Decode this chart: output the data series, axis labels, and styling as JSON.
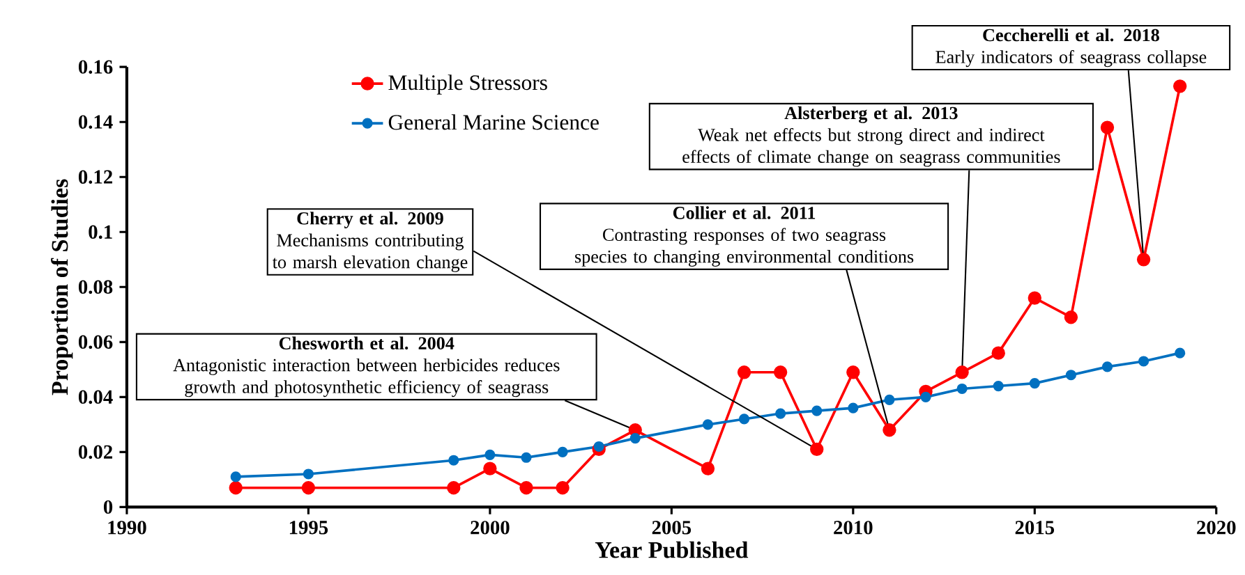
{
  "chart_data": {
    "type": "line",
    "xlabel": "Year Published",
    "ylabel": "Proportion of Studies",
    "xlim": [
      1990,
      2020
    ],
    "ylim": [
      0,
      0.16
    ],
    "xticks": [
      1990,
      1995,
      2000,
      2005,
      2010,
      2015,
      2020
    ],
    "yticks": [
      0,
      0.02,
      0.04,
      0.06,
      0.08,
      0.1,
      0.12,
      0.14,
      0.16
    ],
    "x": [
      1993,
      1995,
      1999,
      2000,
      2001,
      2002,
      2003,
      2004,
      2006,
      2007,
      2008,
      2009,
      2010,
      2011,
      2012,
      2013,
      2014,
      2015,
      2016,
      2017,
      2018,
      2019
    ],
    "series": [
      {
        "name": "Multiple Stressors",
        "color": "#ff0000",
        "values": [
          0.007,
          0.007,
          0.007,
          0.014,
          0.007,
          0.007,
          0.021,
          0.028,
          0.014,
          0.049,
          0.049,
          0.021,
          0.049,
          0.028,
          0.042,
          0.049,
          0.056,
          0.076,
          0.069,
          0.138,
          0.09,
          0.153
        ]
      },
      {
        "name": "General Marine Science",
        "color": "#0070c0",
        "values": [
          0.011,
          0.012,
          0.017,
          0.019,
          0.018,
          0.02,
          0.022,
          0.025,
          0.03,
          0.032,
          0.034,
          0.035,
          0.036,
          0.039,
          0.04,
          0.043,
          0.044,
          0.045,
          0.048,
          0.051,
          0.053,
          0.056
        ]
      }
    ],
    "annotations": [
      "Chesworth et al. 2004",
      {
        "text": "Antagonistic interaction between herbicides reduces growth and photosynthetic efficiency of seagrass",
        "x": 2004,
        "y": 0.028
      },
      "Cherry et al. 2009",
      {
        "text": "Mechanisms contributing to marsh elevation change",
        "x": 2009,
        "y": 0.021
      },
      "Collier et al. 2011",
      {
        "text": "Contrasting responses of two seagrass species to changing environmental conditions",
        "x": 2011,
        "y": 0.028
      },
      "Alsterberg et al. 2013",
      {
        "text": "Weak net effects but strong direct and indirect effects of climate change on seagrass communities",
        "x": 2013,
        "y": 0.049
      },
      "Ceccherelli et al. 2018",
      {
        "text": "Early indicators of seagrass collapse",
        "x": 2018,
        "y": 0.09
      }
    ],
    "legend": "top left",
    "marker": "circle",
    "line_style": "solid",
    "grid": false
  }
}
